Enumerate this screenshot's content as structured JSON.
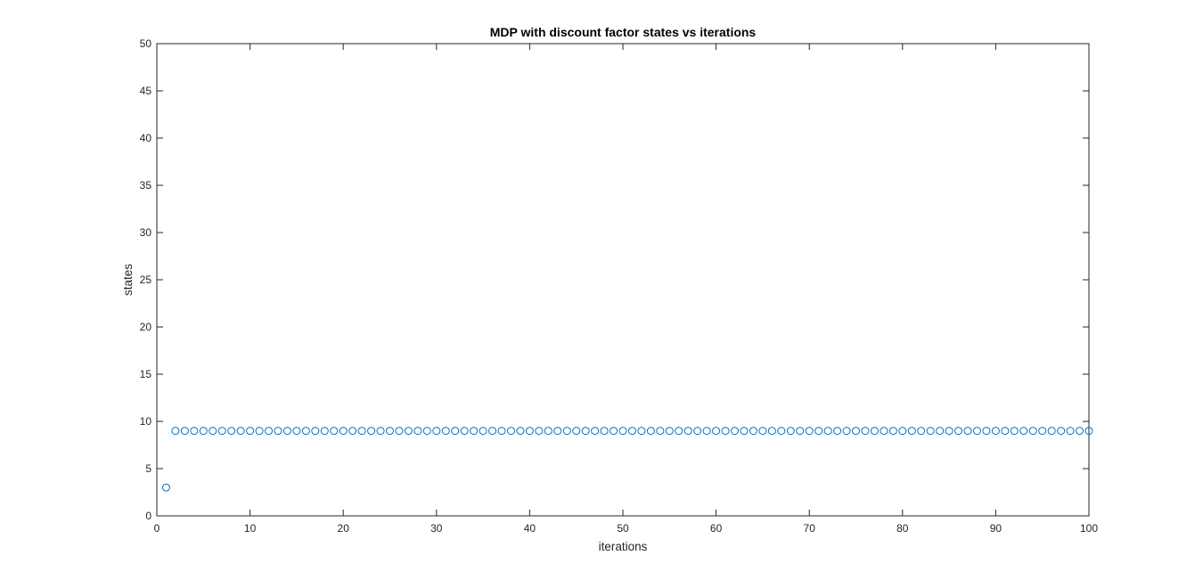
{
  "chart_data": {
    "type": "scatter",
    "title": "MDP with discount factor states vs iterations",
    "xlabel": "iterations",
    "ylabel": "states",
    "xlim": [
      0,
      100
    ],
    "ylim": [
      0,
      50
    ],
    "xticks": [
      0,
      10,
      20,
      30,
      40,
      50,
      60,
      70,
      80,
      90,
      100
    ],
    "yticks": [
      0,
      5,
      10,
      15,
      20,
      25,
      30,
      35,
      40,
      45,
      50
    ],
    "grid": false,
    "marker": "open-circle",
    "color": "#0072BD",
    "series": [
      {
        "x": [
          1,
          2,
          3,
          4,
          5,
          6,
          7,
          8,
          9,
          10,
          11,
          12,
          13,
          14,
          15,
          16,
          17,
          18,
          19,
          20,
          21,
          22,
          23,
          24,
          25,
          26,
          27,
          28,
          29,
          30,
          31,
          32,
          33,
          34,
          35,
          36,
          37,
          38,
          39,
          40,
          41,
          42,
          43,
          44,
          45,
          46,
          47,
          48,
          49,
          50,
          51,
          52,
          53,
          54,
          55,
          56,
          57,
          58,
          59,
          60,
          61,
          62,
          63,
          64,
          65,
          66,
          67,
          68,
          69,
          70,
          71,
          72,
          73,
          74,
          75,
          76,
          77,
          78,
          79,
          80,
          81,
          82,
          83,
          84,
          85,
          86,
          87,
          88,
          89,
          90,
          91,
          92,
          93,
          94,
          95,
          96,
          97,
          98,
          99,
          100
        ],
        "y": [
          3,
          9,
          9,
          9,
          9,
          9,
          9,
          9,
          9,
          9,
          9,
          9,
          9,
          9,
          9,
          9,
          9,
          9,
          9,
          9,
          9,
          9,
          9,
          9,
          9,
          9,
          9,
          9,
          9,
          9,
          9,
          9,
          9,
          9,
          9,
          9,
          9,
          9,
          9,
          9,
          9,
          9,
          9,
          9,
          9,
          9,
          9,
          9,
          9,
          9,
          9,
          9,
          9,
          9,
          9,
          9,
          9,
          9,
          9,
          9,
          9,
          9,
          9,
          9,
          9,
          9,
          9,
          9,
          9,
          9,
          9,
          9,
          9,
          9,
          9,
          9,
          9,
          9,
          9,
          9,
          9,
          9,
          9,
          9,
          9,
          9,
          9,
          9,
          9,
          9,
          9,
          9,
          9,
          9,
          9,
          9,
          9,
          9,
          9,
          9
        ]
      }
    ]
  }
}
